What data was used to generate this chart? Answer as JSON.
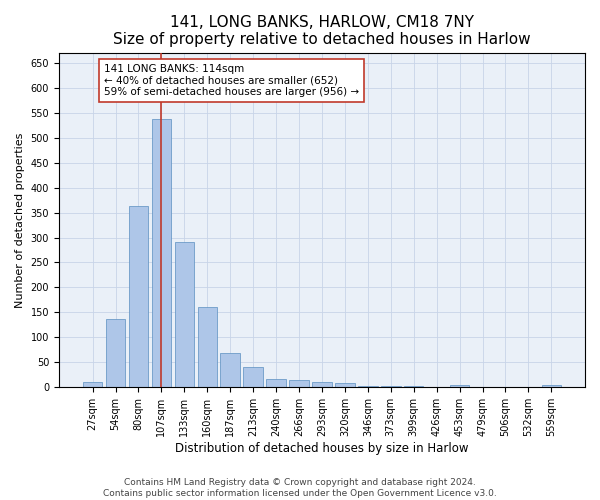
{
  "title": "141, LONG BANKS, HARLOW, CM18 7NY",
  "subtitle": "Size of property relative to detached houses in Harlow",
  "xlabel": "Distribution of detached houses by size in Harlow",
  "ylabel": "Number of detached properties",
  "categories": [
    "27sqm",
    "54sqm",
    "80sqm",
    "107sqm",
    "133sqm",
    "160sqm",
    "187sqm",
    "213sqm",
    "240sqm",
    "266sqm",
    "293sqm",
    "320sqm",
    "346sqm",
    "373sqm",
    "399sqm",
    "426sqm",
    "453sqm",
    "479sqm",
    "506sqm",
    "532sqm",
    "559sqm"
  ],
  "values": [
    11,
    137,
    363,
    538,
    292,
    160,
    68,
    40,
    17,
    15,
    11,
    8,
    3,
    3,
    3,
    0,
    5,
    0,
    0,
    0,
    4
  ],
  "bar_color": "#aec6e8",
  "bar_edge_color": "#5a8fc0",
  "vline_x_index": 3,
  "vline_color": "#c0392b",
  "annotation_text": "141 LONG BANKS: 114sqm\n← 40% of detached houses are smaller (652)\n59% of semi-detached houses are larger (956) →",
  "annotation_box_color": "#ffffff",
  "annotation_box_edge_color": "#c0392b",
  "annotation_fontsize": 7.5,
  "ylim": [
    0,
    670
  ],
  "yticks": [
    0,
    50,
    100,
    150,
    200,
    250,
    300,
    350,
    400,
    450,
    500,
    550,
    600,
    650
  ],
  "title_fontsize": 11,
  "subtitle_fontsize": 9,
  "xlabel_fontsize": 8.5,
  "ylabel_fontsize": 8,
  "tick_fontsize": 7,
  "footer_line1": "Contains HM Land Registry data © Crown copyright and database right 2024.",
  "footer_line2": "Contains public sector information licensed under the Open Government Licence v3.0.",
  "footer_fontsize": 6.5,
  "background_color": "#ffffff",
  "grid_color": "#c8d4e8",
  "axes_bg_color": "#eaf0f8"
}
